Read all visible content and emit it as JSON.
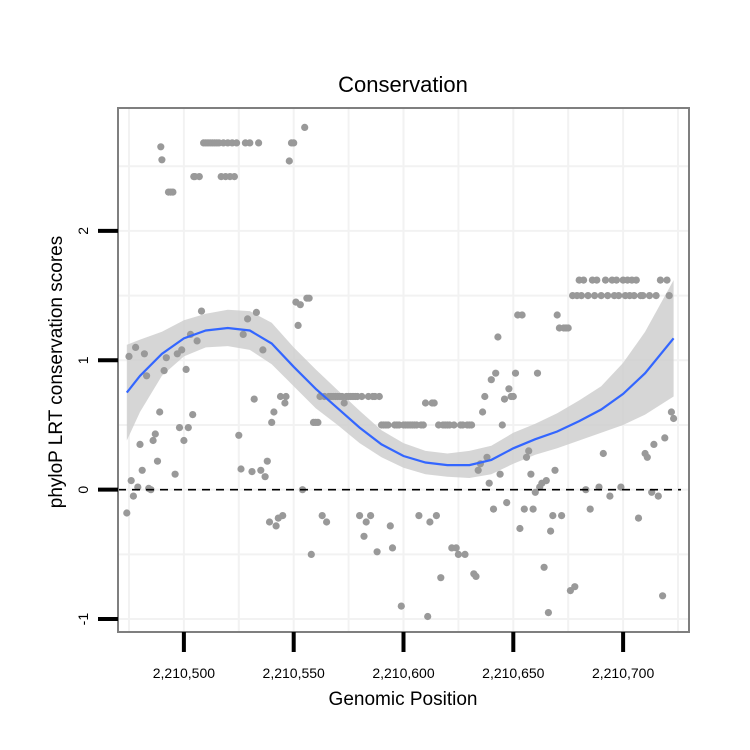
{
  "chart_data": {
    "type": "scatter",
    "title": "Conservation",
    "xlabel": "Genomic Position",
    "ylabel": "phyloP LRT conservation scores",
    "xlim": [
      2210470,
      2210730
    ],
    "ylim": [
      -1.1,
      2.95
    ],
    "x_ticks": [
      2210500,
      2210550,
      2210600,
      2210650,
      2210700
    ],
    "x_tick_labels": [
      "2,210,500",
      "2,210,550",
      "2,210,600",
      "2,210,650",
      "2,210,700"
    ],
    "y_ticks": [
      -1,
      0,
      1,
      2
    ],
    "y_tick_labels": [
      "-1",
      "0",
      "1",
      "2"
    ],
    "reference_line": {
      "y": 0,
      "style": "dashed"
    },
    "grid": true,
    "colors": {
      "points": "#999999",
      "smooth_line": "#3366ff",
      "ribbon": "#cccccc",
      "panel_border": "#7f7f7f",
      "grid": "#f2f2f2"
    },
    "points": [
      {
        "x": 2210474,
        "y": -0.18
      },
      {
        "x": 2210475,
        "y": 1.03
      },
      {
        "x": 2210476,
        "y": 0.07
      },
      {
        "x": 2210477,
        "y": -0.05
      },
      {
        "x": 2210478,
        "y": 1.1
      },
      {
        "x": 2210479,
        "y": 0.02
      },
      {
        "x": 2210480,
        "y": 0.35
      },
      {
        "x": 2210481,
        "y": 0.15
      },
      {
        "x": 2210482,
        "y": 1.05
      },
      {
        "x": 2210483,
        "y": 0.88
      },
      {
        "x": 2210484,
        "y": 0.01
      },
      {
        "x": 2210485,
        "y": 0.0
      },
      {
        "x": 2210486,
        "y": 0.38
      },
      {
        "x": 2210487,
        "y": 0.43
      },
      {
        "x": 2210488,
        "y": 0.22
      },
      {
        "x": 2210489,
        "y": 0.6
      },
      {
        "x": 2210489.5,
        "y": 2.65
      },
      {
        "x": 2210490,
        "y": 2.55
      },
      {
        "x": 2210491,
        "y": 0.92
      },
      {
        "x": 2210492,
        "y": 1.02
      },
      {
        "x": 2210493,
        "y": 2.3
      },
      {
        "x": 2210494,
        "y": 2.3
      },
      {
        "x": 2210495,
        "y": 2.3
      },
      {
        "x": 2210496,
        "y": 0.12
      },
      {
        "x": 2210497,
        "y": 1.05
      },
      {
        "x": 2210498,
        "y": 0.48
      },
      {
        "x": 2210499,
        "y": 1.08
      },
      {
        "x": 2210500,
        "y": 0.38
      },
      {
        "x": 2210501,
        "y": 0.93
      },
      {
        "x": 2210502,
        "y": 0.48
      },
      {
        "x": 2210503,
        "y": 1.2
      },
      {
        "x": 2210504,
        "y": 0.58
      },
      {
        "x": 2210504.5,
        "y": 2.42
      },
      {
        "x": 2210505,
        "y": 2.42
      },
      {
        "x": 2210506,
        "y": 1.15
      },
      {
        "x": 2210507,
        "y": 2.42
      },
      {
        "x": 2210508,
        "y": 1.38
      },
      {
        "x": 2210509,
        "y": 2.68
      },
      {
        "x": 2210510,
        "y": 2.68
      },
      {
        "x": 2210511,
        "y": 2.68
      },
      {
        "x": 2210512,
        "y": 2.68
      },
      {
        "x": 2210513,
        "y": 2.68
      },
      {
        "x": 2210514,
        "y": 2.68
      },
      {
        "x": 2210515,
        "y": 2.68
      },
      {
        "x": 2210516,
        "y": 2.68
      },
      {
        "x": 2210517,
        "y": 2.42
      },
      {
        "x": 2210518,
        "y": 2.68
      },
      {
        "x": 2210519,
        "y": 2.42
      },
      {
        "x": 2210520,
        "y": 2.68
      },
      {
        "x": 2210521,
        "y": 2.42
      },
      {
        "x": 2210522,
        "y": 2.68
      },
      {
        "x": 2210523,
        "y": 2.42
      },
      {
        "x": 2210524,
        "y": 2.68
      },
      {
        "x": 2210525,
        "y": 0.42
      },
      {
        "x": 2210526,
        "y": 0.16
      },
      {
        "x": 2210527,
        "y": 1.2
      },
      {
        "x": 2210528,
        "y": 2.68
      },
      {
        "x": 2210529,
        "y": 1.32
      },
      {
        "x": 2210530,
        "y": 2.68
      },
      {
        "x": 2210531,
        "y": 0.14
      },
      {
        "x": 2210532,
        "y": 0.7
      },
      {
        "x": 2210533,
        "y": 1.37
      },
      {
        "x": 2210534,
        "y": 2.68
      },
      {
        "x": 2210535,
        "y": 0.15
      },
      {
        "x": 2210536,
        "y": 1.08
      },
      {
        "x": 2210537,
        "y": 0.1
      },
      {
        "x": 2210538,
        "y": 0.22
      },
      {
        "x": 2210539,
        "y": -0.25
      },
      {
        "x": 2210540,
        "y": 0.52
      },
      {
        "x": 2210541,
        "y": 0.6
      },
      {
        "x": 2210542,
        "y": -0.28
      },
      {
        "x": 2210543,
        "y": -0.22
      },
      {
        "x": 2210544,
        "y": 0.72
      },
      {
        "x": 2210545,
        "y": -0.2
      },
      {
        "x": 2210546,
        "y": 0.67
      },
      {
        "x": 2210546.5,
        "y": 0.72
      },
      {
        "x": 2210548,
        "y": 2.54
      },
      {
        "x": 2210549,
        "y": 2.68
      },
      {
        "x": 2210550,
        "y": 2.68
      },
      {
        "x": 2210551,
        "y": 1.45
      },
      {
        "x": 2210552,
        "y": 1.27
      },
      {
        "x": 2210553,
        "y": 1.43
      },
      {
        "x": 2210554,
        "y": 0.0
      },
      {
        "x": 2210555,
        "y": 2.8
      },
      {
        "x": 2210556,
        "y": 1.48
      },
      {
        "x": 2210557,
        "y": 1.48
      },
      {
        "x": 2210558,
        "y": -0.5
      },
      {
        "x": 2210559,
        "y": 0.52
      },
      {
        "x": 2210560,
        "y": 0.52
      },
      {
        "x": 2210561,
        "y": 0.52
      },
      {
        "x": 2210562,
        "y": 0.72
      },
      {
        "x": 2210563,
        "y": -0.2
      },
      {
        "x": 2210564,
        "y": 0.72
      },
      {
        "x": 2210565,
        "y": -0.25
      },
      {
        "x": 2210566,
        "y": 0.72
      },
      {
        "x": 2210567,
        "y": 0.72
      },
      {
        "x": 2210568,
        "y": 0.72
      },
      {
        "x": 2210569,
        "y": 0.72
      },
      {
        "x": 2210570,
        "y": 0.72
      },
      {
        "x": 2210571,
        "y": 0.72
      },
      {
        "x": 2210572,
        "y": 0.72
      },
      {
        "x": 2210573,
        "y": 0.67
      },
      {
        "x": 2210574,
        "y": 0.72
      },
      {
        "x": 2210575,
        "y": 0.72
      },
      {
        "x": 2210576,
        "y": 0.72
      },
      {
        "x": 2210577,
        "y": 0.72
      },
      {
        "x": 2210578,
        "y": 0.72
      },
      {
        "x": 2210579,
        "y": 0.72
      },
      {
        "x": 2210580,
        "y": -0.2
      },
      {
        "x": 2210581,
        "y": 0.72
      },
      {
        "x": 2210582,
        "y": -0.36
      },
      {
        "x": 2210583,
        "y": -0.25
      },
      {
        "x": 2210584,
        "y": 0.72
      },
      {
        "x": 2210585,
        "y": -0.2
      },
      {
        "x": 2210586,
        "y": 0.72
      },
      {
        "x": 2210587,
        "y": 0.72
      },
      {
        "x": 2210588,
        "y": -0.48
      },
      {
        "x": 2210589,
        "y": 0.72
      },
      {
        "x": 2210590,
        "y": 0.5
      },
      {
        "x": 2210591,
        "y": 0.5
      },
      {
        "x": 2210592,
        "y": 0.5
      },
      {
        "x": 2210593,
        "y": 0.5
      },
      {
        "x": 2210594,
        "y": -0.28
      },
      {
        "x": 2210595,
        "y": -0.45
      },
      {
        "x": 2210596,
        "y": 0.5
      },
      {
        "x": 2210597,
        "y": 0.5
      },
      {
        "x": 2210598,
        "y": 0.5
      },
      {
        "x": 2210599,
        "y": -0.9
      },
      {
        "x": 2210600,
        "y": 0.5
      },
      {
        "x": 2210601,
        "y": 0.5
      },
      {
        "x": 2210602,
        "y": 0.5
      },
      {
        "x": 2210603,
        "y": 0.5
      },
      {
        "x": 2210604,
        "y": 0.5
      },
      {
        "x": 2210605,
        "y": 0.5
      },
      {
        "x": 2210606,
        "y": 0.5
      },
      {
        "x": 2210607,
        "y": -0.2
      },
      {
        "x": 2210608,
        "y": 0.5
      },
      {
        "x": 2210609,
        "y": 0.5
      },
      {
        "x": 2210610,
        "y": 0.67
      },
      {
        "x": 2210611,
        "y": -0.98
      },
      {
        "x": 2210612,
        "y": -0.25
      },
      {
        "x": 2210613,
        "y": 0.67
      },
      {
        "x": 2210614,
        "y": 0.67
      },
      {
        "x": 2210615,
        "y": -0.2
      },
      {
        "x": 2210616,
        "y": 0.5
      },
      {
        "x": 2210617,
        "y": -0.68
      },
      {
        "x": 2210618,
        "y": 0.5
      },
      {
        "x": 2210619,
        "y": 0.5
      },
      {
        "x": 2210620,
        "y": 0.5
      },
      {
        "x": 2210621,
        "y": 0.5
      },
      {
        "x": 2210622,
        "y": -0.45
      },
      {
        "x": 2210623,
        "y": 0.5
      },
      {
        "x": 2210624,
        "y": -0.45
      },
      {
        "x": 2210625,
        "y": -0.5
      },
      {
        "x": 2210626,
        "y": 0.5
      },
      {
        "x": 2210627,
        "y": 0.5
      },
      {
        "x": 2210628,
        "y": -0.5
      },
      {
        "x": 2210629,
        "y": 0.5
      },
      {
        "x": 2210630,
        "y": 0.5
      },
      {
        "x": 2210631,
        "y": 0.5
      },
      {
        "x": 2210632,
        "y": -0.65
      },
      {
        "x": 2210633,
        "y": -0.67
      },
      {
        "x": 2210634,
        "y": 0.15
      },
      {
        "x": 2210635,
        "y": 0.2
      },
      {
        "x": 2210636,
        "y": 0.6
      },
      {
        "x": 2210637,
        "y": 0.72
      },
      {
        "x": 2210638,
        "y": 0.25
      },
      {
        "x": 2210639,
        "y": 0.05
      },
      {
        "x": 2210640,
        "y": 0.85
      },
      {
        "x": 2210641,
        "y": -0.15
      },
      {
        "x": 2210642,
        "y": 0.9
      },
      {
        "x": 2210643,
        "y": 1.18
      },
      {
        "x": 2210644,
        "y": 0.12
      },
      {
        "x": 2210645,
        "y": 0.5
      },
      {
        "x": 2210646,
        "y": 0.7
      },
      {
        "x": 2210647,
        "y": -0.1
      },
      {
        "x": 2210648,
        "y": 0.78
      },
      {
        "x": 2210649,
        "y": 0.72
      },
      {
        "x": 2210650,
        "y": 0.72
      },
      {
        "x": 2210651,
        "y": 0.9
      },
      {
        "x": 2210652,
        "y": 1.35
      },
      {
        "x": 2210653,
        "y": -0.3
      },
      {
        "x": 2210654,
        "y": 1.35
      },
      {
        "x": 2210655,
        "y": -0.15
      },
      {
        "x": 2210656,
        "y": 0.25
      },
      {
        "x": 2210657,
        "y": 0.3
      },
      {
        "x": 2210658,
        "y": 0.12
      },
      {
        "x": 2210659,
        "y": -0.15
      },
      {
        "x": 2210660,
        "y": -0.02
      },
      {
        "x": 2210661,
        "y": 0.9
      },
      {
        "x": 2210662,
        "y": 0.02
      },
      {
        "x": 2210663,
        "y": 0.05
      },
      {
        "x": 2210664,
        "y": -0.6
      },
      {
        "x": 2210665,
        "y": 0.07
      },
      {
        "x": 2210666,
        "y": -0.95
      },
      {
        "x": 2210667,
        "y": -0.32
      },
      {
        "x": 2210668,
        "y": -0.2
      },
      {
        "x": 2210669,
        "y": 0.15
      },
      {
        "x": 2210670,
        "y": 1.35
      },
      {
        "x": 2210671,
        "y": 1.25
      },
      {
        "x": 2210672,
        "y": -0.2
      },
      {
        "x": 2210673,
        "y": 1.25
      },
      {
        "x": 2210674,
        "y": 1.25
      },
      {
        "x": 2210675,
        "y": 1.25
      },
      {
        "x": 2210676,
        "y": -0.78
      },
      {
        "x": 2210677,
        "y": 1.5
      },
      {
        "x": 2210678,
        "y": -0.75
      },
      {
        "x": 2210679,
        "y": 1.5
      },
      {
        "x": 2210680,
        "y": 1.62
      },
      {
        "x": 2210681,
        "y": 1.5
      },
      {
        "x": 2210682,
        "y": 1.62
      },
      {
        "x": 2210683,
        "y": 0.0
      },
      {
        "x": 2210684,
        "y": 1.5
      },
      {
        "x": 2210685,
        "y": -0.15
      },
      {
        "x": 2210686,
        "y": 1.62
      },
      {
        "x": 2210687,
        "y": 1.5
      },
      {
        "x": 2210688,
        "y": 1.62
      },
      {
        "x": 2210689,
        "y": 0.02
      },
      {
        "x": 2210690,
        "y": 1.5
      },
      {
        "x": 2210691,
        "y": 0.28
      },
      {
        "x": 2210692,
        "y": 1.62
      },
      {
        "x": 2210693,
        "y": 1.5
      },
      {
        "x": 2210694,
        "y": -0.05
      },
      {
        "x": 2210695,
        "y": 1.62
      },
      {
        "x": 2210696,
        "y": 1.5
      },
      {
        "x": 2210697,
        "y": 1.62
      },
      {
        "x": 2210698,
        "y": 1.5
      },
      {
        "x": 2210699,
        "y": 0.02
      },
      {
        "x": 2210700,
        "y": 1.62
      },
      {
        "x": 2210701,
        "y": 1.5
      },
      {
        "x": 2210702,
        "y": 1.62
      },
      {
        "x": 2210703,
        "y": 1.5
      },
      {
        "x": 2210704,
        "y": 1.62
      },
      {
        "x": 2210705,
        "y": 1.5
      },
      {
        "x": 2210706,
        "y": 1.62
      },
      {
        "x": 2210707,
        "y": -0.22
      },
      {
        "x": 2210708,
        "y": 1.5
      },
      {
        "x": 2210709,
        "y": 1.5
      },
      {
        "x": 2210710,
        "y": 0.28
      },
      {
        "x": 2210711,
        "y": 0.25
      },
      {
        "x": 2210712,
        "y": 1.5
      },
      {
        "x": 2210713,
        "y": -0.02
      },
      {
        "x": 2210714,
        "y": 0.35
      },
      {
        "x": 2210715,
        "y": 1.5
      },
      {
        "x": 2210716,
        "y": -0.05
      },
      {
        "x": 2210717,
        "y": 1.62
      },
      {
        "x": 2210718,
        "y": -0.82
      },
      {
        "x": 2210719,
        "y": 0.4
      },
      {
        "x": 2210720,
        "y": 1.62
      },
      {
        "x": 2210721,
        "y": 1.5
      },
      {
        "x": 2210722,
        "y": 0.6
      },
      {
        "x": 2210723,
        "y": 0.55
      }
    ],
    "smooth": {
      "x": [
        2210474,
        2210480,
        2210490,
        2210500,
        2210510,
        2210520,
        2210530,
        2210540,
        2210550,
        2210560,
        2210570,
        2210580,
        2210590,
        2210600,
        2210610,
        2210620,
        2210630,
        2210640,
        2210650,
        2210660,
        2210670,
        2210680,
        2210690,
        2210700,
        2210710,
        2210723
      ],
      "y": [
        0.75,
        0.88,
        1.05,
        1.17,
        1.23,
        1.25,
        1.23,
        1.13,
        0.95,
        0.78,
        0.63,
        0.48,
        0.35,
        0.26,
        0.21,
        0.19,
        0.19,
        0.23,
        0.32,
        0.39,
        0.45,
        0.53,
        0.62,
        0.74,
        0.9,
        1.17
      ],
      "lower": [
        0.38,
        0.6,
        0.88,
        1.03,
        1.1,
        1.11,
        1.08,
        0.97,
        0.8,
        0.63,
        0.5,
        0.36,
        0.25,
        0.17,
        0.12,
        0.1,
        0.09,
        0.12,
        0.2,
        0.27,
        0.32,
        0.38,
        0.44,
        0.5,
        0.58,
        0.72
      ],
      "upper": [
        1.12,
        1.16,
        1.22,
        1.31,
        1.36,
        1.39,
        1.38,
        1.29,
        1.1,
        0.93,
        0.77,
        0.61,
        0.46,
        0.36,
        0.3,
        0.28,
        0.3,
        0.34,
        0.44,
        0.51,
        0.59,
        0.69,
        0.8,
        0.98,
        1.22,
        1.62
      ]
    }
  }
}
